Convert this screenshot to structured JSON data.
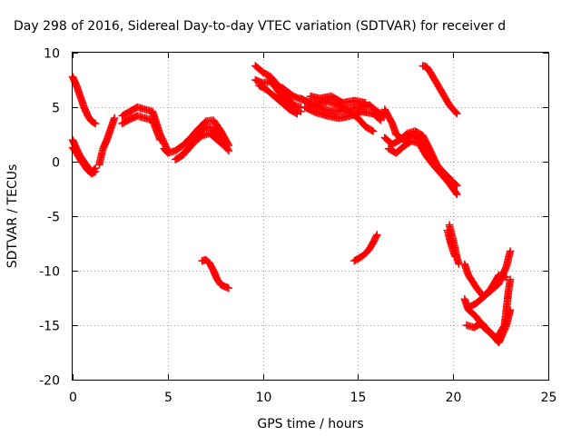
{
  "chart_data": {
    "type": "scatter",
    "title": "Day 298 of 2016, Sidereal Day-to-day VTEC variation (SDTVAR) for receiver d",
    "xlabel": "GPS time / hours",
    "ylabel": "SDTVAR / TECUs",
    "xlim": [
      0,
      25
    ],
    "ylim": [
      -20,
      10
    ],
    "xticks": [
      0,
      5,
      10,
      15,
      20,
      25
    ],
    "yticks": [
      -20,
      -15,
      -10,
      -5,
      0,
      5,
      10
    ],
    "grid": true,
    "legend": "none",
    "marker": "+",
    "color": "#ff0000",
    "series": [
      {
        "points": [
          [
            0,
            7.8
          ],
          [
            0.2,
            7.0
          ],
          [
            0.4,
            6.0
          ],
          [
            0.6,
            5.0
          ],
          [
            0.8,
            4.2
          ],
          [
            1.0,
            3.7
          ],
          [
            1.2,
            3.5
          ]
        ]
      },
      {
        "points": [
          [
            0,
            2.0
          ],
          [
            0.2,
            1.2
          ],
          [
            0.4,
            0.5
          ],
          [
            0.6,
            0.0
          ],
          [
            0.8,
            -0.5
          ],
          [
            1.0,
            -0.9
          ],
          [
            1.2,
            -0.6
          ]
        ]
      },
      {
        "points": [
          [
            0,
            1.3
          ],
          [
            0.2,
            0.8
          ],
          [
            0.4,
            0.2
          ],
          [
            0.6,
            -0.3
          ],
          [
            0.8,
            -0.8
          ],
          [
            1.0,
            -1.1
          ],
          [
            1.2,
            -0.9
          ]
        ]
      },
      {
        "points": [
          [
            1.4,
            -0.3
          ],
          [
            1.5,
            0.5
          ],
          [
            1.6,
            1.2
          ],
          [
            1.8,
            2.0
          ],
          [
            2.0,
            3.0
          ],
          [
            2.2,
            4.0
          ]
        ]
      },
      {
        "points": [
          [
            2.6,
            4.2
          ],
          [
            3.0,
            4.6
          ],
          [
            3.4,
            5.0
          ],
          [
            3.8,
            4.8
          ],
          [
            4.2,
            4.6
          ],
          [
            4.6,
            2.5
          ],
          [
            5.0,
            1.0
          ]
        ]
      },
      {
        "points": [
          [
            2.6,
            3.5
          ],
          [
            3.0,
            3.9
          ],
          [
            3.4,
            4.2
          ],
          [
            3.8,
            4.0
          ],
          [
            4.2,
            3.8
          ],
          [
            4.6,
            2.0
          ]
        ]
      },
      {
        "points": [
          [
            4.8,
            1.2
          ],
          [
            5.0,
            0.8
          ],
          [
            5.4,
            1.0
          ],
          [
            5.8,
            1.5
          ],
          [
            6.2,
            2.2
          ],
          [
            6.6,
            3.0
          ],
          [
            7.0,
            3.7
          ],
          [
            7.4,
            3.8
          ],
          [
            7.8,
            2.8
          ],
          [
            8.2,
            1.5
          ]
        ]
      },
      {
        "points": [
          [
            5.4,
            0.2
          ],
          [
            5.8,
            0.6
          ],
          [
            6.2,
            1.5
          ],
          [
            6.6,
            2.5
          ],
          [
            7.0,
            3.2
          ],
          [
            7.4,
            3.0
          ],
          [
            7.8,
            2.2
          ],
          [
            8.2,
            1.0
          ]
        ]
      },
      {
        "points": [
          [
            5.6,
            0.4
          ],
          [
            6.0,
            1.0
          ],
          [
            6.4,
            1.8
          ],
          [
            6.8,
            2.4
          ],
          [
            7.2,
            2.6
          ],
          [
            7.6,
            2.0
          ],
          [
            8.0,
            1.4
          ]
        ]
      },
      {
        "points": [
          [
            6.8,
            -9.1
          ],
          [
            7.0,
            -9.0
          ],
          [
            7.2,
            -9.3
          ],
          [
            7.4,
            -10.0
          ],
          [
            7.6,
            -10.8
          ],
          [
            7.8,
            -11.3
          ],
          [
            8.2,
            -11.6
          ]
        ]
      },
      {
        "points": [
          [
            9.6,
            8.8
          ],
          [
            10.0,
            8.2
          ],
          [
            10.4,
            7.8
          ],
          [
            10.8,
            7.0
          ],
          [
            11.2,
            6.0
          ],
          [
            11.6,
            5.2
          ],
          [
            12.0,
            5.0
          ]
        ]
      },
      {
        "points": [
          [
            9.6,
            7.5
          ],
          [
            10.0,
            7.2
          ],
          [
            10.4,
            7.4
          ],
          [
            10.8,
            6.5
          ],
          [
            11.2,
            5.5
          ],
          [
            11.6,
            4.8
          ],
          [
            12.0,
            4.6
          ]
        ]
      },
      {
        "points": [
          [
            9.8,
            7.0
          ],
          [
            10.2,
            6.6
          ],
          [
            10.6,
            6.0
          ],
          [
            11.0,
            5.4
          ],
          [
            11.4,
            4.8
          ],
          [
            11.8,
            4.4
          ]
        ]
      },
      {
        "points": [
          [
            11.0,
            6.8
          ],
          [
            11.6,
            6.0
          ],
          [
            12.2,
            5.6
          ],
          [
            12.8,
            5.3
          ],
          [
            13.4,
            5.5
          ],
          [
            14.0,
            5.2
          ],
          [
            14.6,
            4.5
          ],
          [
            15.0,
            4.0
          ],
          [
            15.4,
            3.2
          ],
          [
            15.8,
            2.8
          ]
        ]
      },
      {
        "points": [
          [
            12.0,
            5.8
          ],
          [
            12.6,
            5.2
          ],
          [
            13.2,
            4.8
          ],
          [
            13.8,
            4.6
          ],
          [
            14.4,
            4.8
          ],
          [
            15.0,
            5.0
          ],
          [
            15.6,
            5.2
          ],
          [
            16.0,
            4.6
          ],
          [
            16.4,
            4.2
          ]
        ]
      },
      {
        "points": [
          [
            12.2,
            5.0
          ],
          [
            12.8,
            4.5
          ],
          [
            13.4,
            4.2
          ],
          [
            14.0,
            4.0
          ],
          [
            14.6,
            4.2
          ],
          [
            15.2,
            4.6
          ],
          [
            15.8,
            4.4
          ],
          [
            16.2,
            3.8
          ]
        ]
      },
      {
        "points": [
          [
            12.5,
            6.0
          ],
          [
            13.0,
            5.8
          ],
          [
            13.6,
            6.0
          ],
          [
            14.2,
            5.4
          ],
          [
            14.8,
            5.6
          ],
          [
            15.4,
            5.4
          ]
        ]
      },
      {
        "points": [
          [
            14.8,
            -9.1
          ],
          [
            15.0,
            -8.9
          ],
          [
            15.2,
            -8.7
          ],
          [
            15.4,
            -8.4
          ],
          [
            15.6,
            -8.0
          ],
          [
            15.8,
            -7.4
          ],
          [
            16.0,
            -6.7
          ]
        ]
      },
      {
        "points": [
          [
            16.4,
            4.8
          ],
          [
            16.8,
            3.5
          ],
          [
            17.0,
            2.5
          ],
          [
            17.4,
            2.0
          ],
          [
            17.8,
            2.5
          ],
          [
            18.2,
            2.2
          ],
          [
            18.6,
            1.6
          ],
          [
            19.0,
            0.0
          ],
          [
            19.4,
            -0.8
          ],
          [
            19.8,
            -1.5
          ],
          [
            20.2,
            -2.2
          ]
        ]
      },
      {
        "points": [
          [
            16.4,
            2.2
          ],
          [
            16.8,
            1.6
          ],
          [
            17.2,
            2.0
          ],
          [
            17.6,
            2.6
          ],
          [
            18.0,
            2.8
          ],
          [
            18.4,
            2.4
          ],
          [
            18.8,
            1.0
          ],
          [
            19.2,
            -0.5
          ],
          [
            19.6,
            -1.5
          ],
          [
            20.0,
            -2.5
          ],
          [
            20.2,
            -3.0
          ]
        ]
      },
      {
        "points": [
          [
            16.6,
            1.2
          ],
          [
            17.0,
            0.8
          ],
          [
            17.4,
            1.4
          ],
          [
            17.8,
            1.9
          ],
          [
            18.2,
            1.7
          ],
          [
            18.6,
            0.5
          ],
          [
            19.0,
            -0.4
          ],
          [
            19.4,
            -1.2
          ],
          [
            19.8,
            -2.0
          ]
        ]
      },
      {
        "points": [
          [
            18.4,
            8.8
          ],
          [
            18.6,
            8.7
          ],
          [
            18.8,
            8.2
          ],
          [
            19.0,
            7.6
          ],
          [
            19.2,
            7.0
          ],
          [
            19.4,
            6.4
          ],
          [
            19.6,
            5.8
          ],
          [
            19.8,
            5.2
          ],
          [
            20.0,
            4.8
          ],
          [
            20.2,
            4.4
          ]
        ]
      },
      {
        "points": [
          [
            19.8,
            -5.8
          ],
          [
            19.9,
            -6.5
          ],
          [
            20.0,
            -7.2
          ],
          [
            20.1,
            -8.0
          ],
          [
            20.2,
            -8.8
          ],
          [
            20.3,
            -9.4
          ]
        ]
      },
      {
        "points": [
          [
            19.7,
            -6.3
          ],
          [
            19.8,
            -7.0
          ],
          [
            19.9,
            -7.6
          ],
          [
            20.0,
            -8.2
          ],
          [
            20.1,
            -8.7
          ]
        ]
      },
      {
        "points": [
          [
            20.6,
            -9.4
          ],
          [
            20.8,
            -10.4
          ],
          [
            21.2,
            -11.5
          ],
          [
            21.6,
            -12.4
          ],
          [
            22.0,
            -11.6
          ],
          [
            22.4,
            -10.4
          ],
          [
            22.8,
            -10.6
          ]
        ]
      },
      {
        "points": [
          [
            20.6,
            -12.6
          ],
          [
            20.8,
            -13.6
          ],
          [
            21.2,
            -14.2
          ],
          [
            21.6,
            -15.2
          ],
          [
            22.0,
            -15.8
          ],
          [
            22.4,
            -16.6
          ],
          [
            22.8,
            -15.0
          ],
          [
            23.0,
            -13.6
          ]
        ]
      },
      {
        "points": [
          [
            20.8,
            -13.4
          ],
          [
            21.2,
            -13.0
          ],
          [
            21.6,
            -12.4
          ],
          [
            22.0,
            -11.8
          ],
          [
            22.4,
            -11.2
          ],
          [
            22.8,
            -9.6
          ],
          [
            23.0,
            -8.2
          ]
        ]
      },
      {
        "points": [
          [
            20.7,
            -15.0
          ],
          [
            21.1,
            -15.2
          ],
          [
            21.5,
            -14.8
          ],
          [
            21.9,
            -15.6
          ],
          [
            22.3,
            -16.2
          ],
          [
            22.7,
            -15.0
          ],
          [
            22.9,
            -12.0
          ],
          [
            23.0,
            -10.8
          ]
        ]
      }
    ]
  }
}
